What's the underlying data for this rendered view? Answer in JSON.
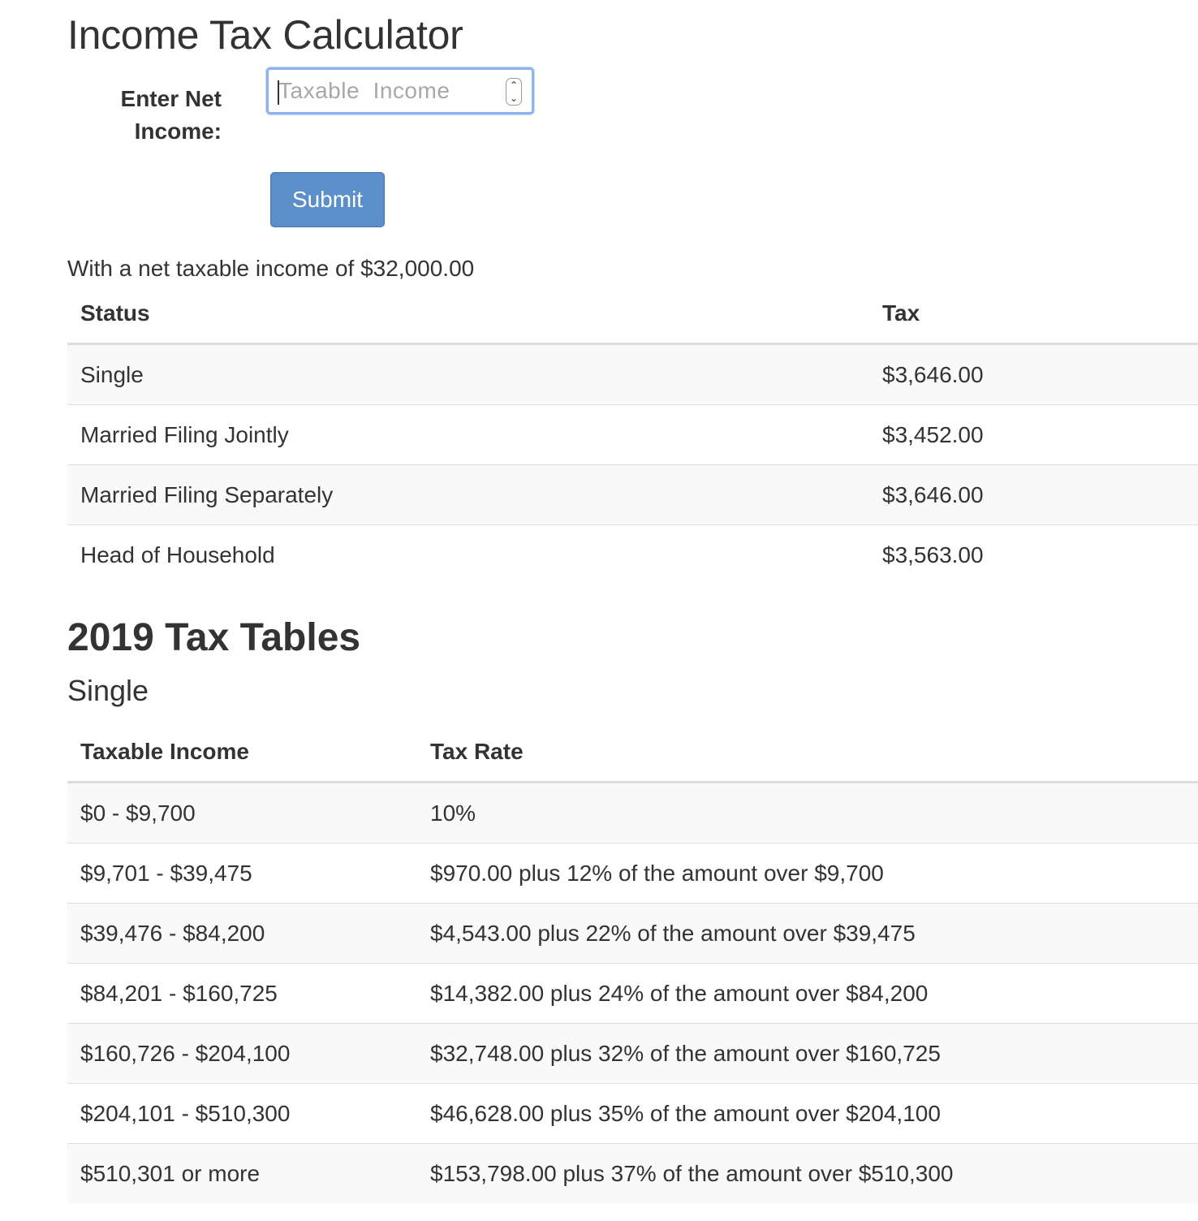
{
  "header": {
    "title": "Income Tax Calculator"
  },
  "form": {
    "label": "Enter Net Income:",
    "input_placeholder": "Taxable  Income",
    "input_value": "",
    "submit_label": "Submit"
  },
  "result": {
    "summary": "With a net taxable income of $32,000.00",
    "columns": [
      "Status",
      "Tax"
    ],
    "rows": [
      {
        "status": "Single",
        "tax": "$3,646.00"
      },
      {
        "status": "Married Filing Jointly",
        "tax": "$3,452.00"
      },
      {
        "status": "Married Filing Separately",
        "tax": "$3,646.00"
      },
      {
        "status": "Head of Household",
        "tax": "$3,563.00"
      }
    ]
  },
  "tax_tables": {
    "title": "2019 Tax Tables",
    "sections": [
      {
        "name": "Single",
        "columns": [
          "Taxable Income",
          "Tax Rate"
        ],
        "rows": [
          {
            "income": "$0 - $9,700",
            "rate": "10%"
          },
          {
            "income": "$9,701 - $39,475",
            "rate": "$970.00 plus 12% of the amount over $9,700"
          },
          {
            "income": "$39,476 - $84,200",
            "rate": "$4,543.00 plus 22% of the amount over $39,475"
          },
          {
            "income": "$84,201 - $160,725",
            "rate": "$14,382.00 plus 24% of the amount over $84,200"
          },
          {
            "income": "$160,726 - $204,100",
            "rate": "$32,748.00 plus 32% of the amount over $160,725"
          },
          {
            "income": "$204,101 - $510,300",
            "rate": "$46,628.00 plus 35% of the amount over $204,100"
          },
          {
            "income": "$510,301 or more",
            "rate": "$153,798.00 plus 37% of the amount over $510,300"
          }
        ]
      }
    ]
  },
  "icons": {
    "spinner_up": "chevron-up-icon",
    "spinner_down": "chevron-down-icon"
  },
  "colors": {
    "button_bg": "#5a8fca",
    "input_focus_border": "#8fb2ef",
    "row_stripe": "#f9f9f9",
    "text": "#333333"
  }
}
